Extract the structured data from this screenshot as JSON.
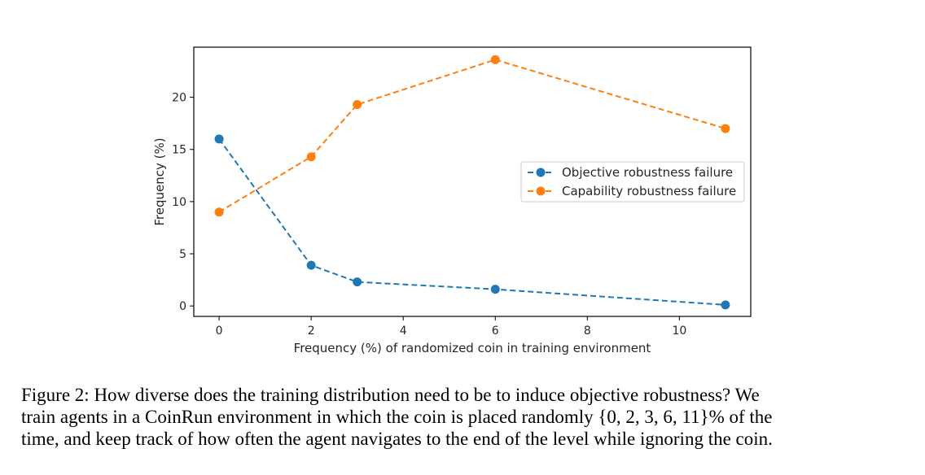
{
  "chart_data": {
    "type": "line",
    "title": "",
    "xlabel": "Frequency (%) of randomized coin in training environment",
    "ylabel": "Frequency (%)",
    "xlim": [
      -0.55,
      11.55
    ],
    "ylim": [
      -1.0,
      24.8
    ],
    "xticks": [
      0,
      2,
      4,
      6,
      8,
      10
    ],
    "yticks": [
      0,
      5,
      10,
      15,
      20
    ],
    "x": [
      0,
      2,
      3,
      6,
      11
    ],
    "series": [
      {
        "name": "Objective robustness failure",
        "values": [
          16.0,
          3.9,
          2.3,
          1.6,
          0.1
        ],
        "color": "#1f77b4",
        "style": "dashed",
        "marker": "circle"
      },
      {
        "name": "Capability robustness failure",
        "values": [
          9.0,
          14.3,
          19.3,
          23.6,
          17.0
        ],
        "color": "#ff7f0e",
        "style": "dashed",
        "marker": "circle"
      }
    ],
    "legend_position": "center-right",
    "grid": false
  },
  "caption": {
    "lines": [
      "Figure 2:  How diverse does the training distribution need to be to induce objective robustness? We",
      "train agents in a CoinRun environment in which the coin is placed randomly {0, 2, 3, 6, 11}% of the",
      "time, and keep track of how often the agent navigates to the end of the level while ignoring the coin."
    ]
  }
}
